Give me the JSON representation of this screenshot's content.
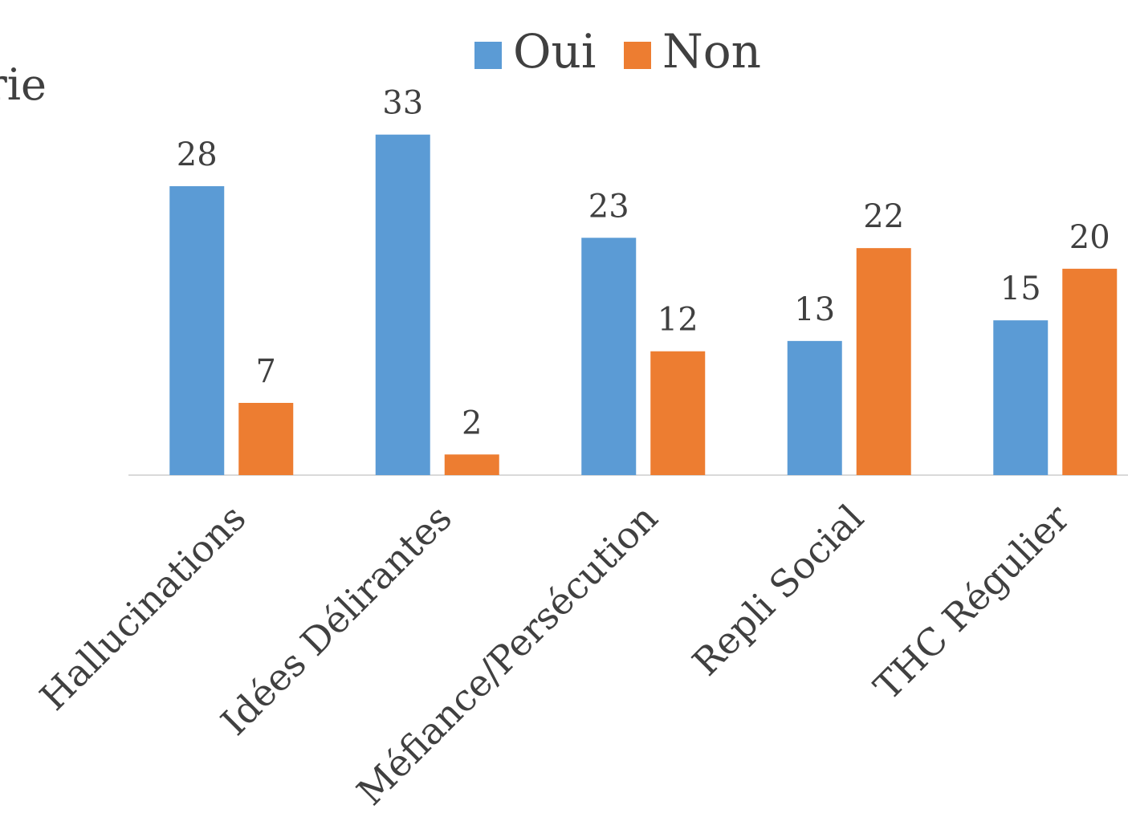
{
  "chart_data": {
    "type": "bar",
    "annotations": [
      "rie"
    ],
    "categories": [
      "Hallucinations",
      "Idées Délirantes",
      "Méfiance/Persécution",
      "Repli Social",
      "THC Régulier"
    ],
    "series": [
      {
        "name": "Oui",
        "color": "#5b9bd5",
        "values": [
          28,
          33,
          23,
          13,
          15
        ]
      },
      {
        "name": "Non",
        "color": "#ed7d31",
        "values": [
          7,
          2,
          12,
          22,
          20
        ]
      }
    ],
    "legend": "top",
    "grid": false
  }
}
